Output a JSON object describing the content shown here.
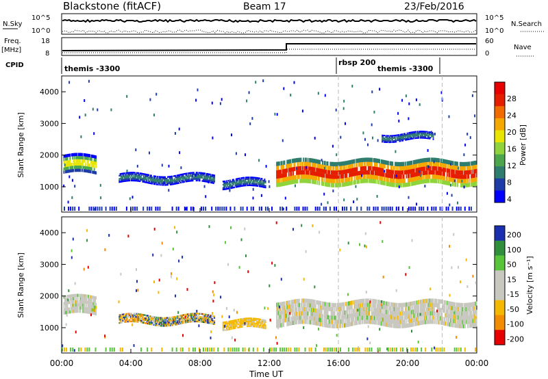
{
  "header": {
    "station": "Blackstone (fitACF)",
    "beam": "Beam 17",
    "date": "23/Feb/2016"
  },
  "top_panels": {
    "nsky_label": "N.Sky",
    "nsearch_label": "N.Search",
    "freq_label_1": "Freq.",
    "freq_label_2": "[MHz]",
    "nave_label": "Nave",
    "cpid_label": "CPID",
    "left_ticks_counts": [
      "10^5",
      "10^0"
    ],
    "right_ticks_counts": [
      "10^5",
      "10^0"
    ],
    "left_ticks_freq": [
      "18",
      "8"
    ],
    "right_ticks_nave": [
      "60",
      "0"
    ]
  },
  "cpid_labels": [
    "themis -3300",
    "rbsp 200",
    "themis -3300"
  ],
  "chart_data": [
    {
      "type": "heatmap",
      "name": "power",
      "ylabel": "Slant Range [km]",
      "y_ticks": [
        "1000",
        "2000",
        "3000",
        "4000"
      ],
      "ylim": [
        200,
        4500
      ],
      "x_ticks": [
        "00:00",
        "04:00",
        "08:00",
        "12:00",
        "16:00",
        "20:00",
        "00:00"
      ],
      "xlim_hours": [
        0,
        24
      ],
      "colorbar_label": "Power [dB]",
      "colorbar_ticks": [
        "4",
        "8",
        "12",
        "16",
        "20",
        "24",
        "28"
      ],
      "colorbar_colors": [
        "#0000ff",
        "#1e3ca8",
        "#2f7d6e",
        "#4ca64c",
        "#8fd43a",
        "#e8e600",
        "#f5a800",
        "#f26b00",
        "#e61e00",
        "#e60000"
      ],
      "bands": [
        {
          "t0": 0.1,
          "t1": 2.0,
          "r0": 1400,
          "r1": 2000,
          "level": 10
        },
        {
          "t0": 3.3,
          "t1": 8.8,
          "r0": 1100,
          "r1": 1400,
          "level": 6
        },
        {
          "t0": 9.3,
          "t1": 11.8,
          "r0": 950,
          "r1": 1250,
          "level": 7
        },
        {
          "t0": 12.4,
          "t1": 24.0,
          "r0": 1050,
          "r1": 1850,
          "level": 18
        },
        {
          "t0": 18.5,
          "t1": 21.5,
          "r0": 2450,
          "r1": 2700,
          "level": 5
        }
      ]
    },
    {
      "type": "heatmap",
      "name": "velocity",
      "ylabel": "Slant Range [km]",
      "y_ticks": [
        "1000",
        "2000",
        "3000",
        "4000"
      ],
      "ylim": [
        200,
        4500
      ],
      "x_ticks": [
        "00:00",
        "04:00",
        "08:00",
        "12:00",
        "16:00",
        "20:00",
        "00:00"
      ],
      "xlabel": "Time UT",
      "xlim_hours": [
        0,
        24
      ],
      "colorbar_label": "Velocity [m s⁻¹]",
      "colorbar_ticks": [
        "200",
        "100",
        "50",
        "15",
        "-15",
        "-50",
        "-100",
        "-200"
      ],
      "colorbar_colors": [
        "#1a2fb0",
        "#2f8f3a",
        "#58c43a",
        "#c8c8c0",
        "#c8c8c0",
        "#f5b800",
        "#f28c00",
        "#e60000"
      ],
      "bands": [
        {
          "t0": 0.1,
          "t1": 2.0,
          "r0": 1400,
          "r1": 2000,
          "level": "ground"
        },
        {
          "t0": 3.3,
          "t1": 8.8,
          "r0": 1100,
          "r1": 1400,
          "level": "mixed"
        },
        {
          "t0": 9.3,
          "t1": 11.8,
          "r0": 950,
          "r1": 1250,
          "level": "negative"
        },
        {
          "t0": 12.4,
          "t1": 24.0,
          "r0": 1050,
          "r1": 1850,
          "level": "ground"
        }
      ]
    }
  ]
}
